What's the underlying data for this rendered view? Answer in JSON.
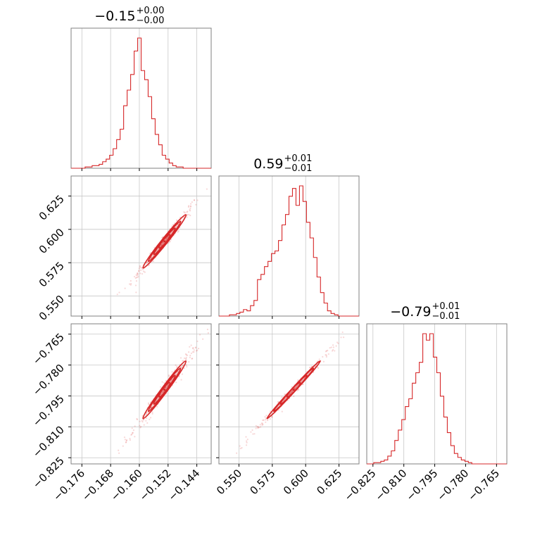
{
  "colors": {
    "series": "#d62728",
    "grid": "#c8c8c8",
    "frame": "#808080",
    "background": "#ffffff"
  },
  "chart_data": {
    "type": "corner",
    "grid": true,
    "dims": [
      {
        "index": 0,
        "title": {
          "main": "−0.15",
          "plus": "+0.00",
          "minus": "−0.00"
        },
        "range": [
          -0.179,
          -0.14
        ],
        "median": -0.153,
        "sigma": 0.003,
        "ticks": [
          -0.176,
          -0.168,
          -0.16,
          -0.152,
          -0.144
        ],
        "tick_labels": [
          "−0.176",
          "−0.168",
          "−0.160",
          "−0.152",
          "−0.144"
        ]
      },
      {
        "index": 1,
        "title": {
          "main": "0.59",
          "plus": "+0.01",
          "minus": "−0.01"
        },
        "range": [
          0.535,
          0.64
        ],
        "median": 0.591,
        "sigma": 0.01,
        "ticks": [
          0.55,
          0.575,
          0.6,
          0.625
        ],
        "tick_labels": [
          "0.550",
          "0.575",
          "0.600",
          "0.625"
        ]
      },
      {
        "index": 2,
        "title": {
          "main": "−0.79",
          "plus": "+0.01",
          "minus": "−0.01"
        },
        "range": [
          -0.828,
          -0.76
        ],
        "median": -0.792,
        "sigma": 0.007,
        "ticks": [
          -0.825,
          -0.81,
          -0.795,
          -0.78,
          -0.765
        ],
        "tick_labels": [
          "−0.825",
          "−0.810",
          "−0.795",
          "−0.780",
          "−0.765"
        ]
      }
    ],
    "histograms": [
      {
        "dim": 0,
        "bins": 40,
        "heights": [
          0,
          0,
          0,
          0,
          1,
          1,
          2,
          2,
          3,
          5,
          7,
          10,
          15,
          22,
          30,
          48,
          60,
          72,
          90,
          100,
          75,
          68,
          55,
          38,
          26,
          18,
          10,
          7,
          4,
          2,
          1,
          1,
          0,
          0,
          0,
          0,
          0,
          0,
          0,
          0
        ]
      },
      {
        "dim": 1,
        "bins": 40,
        "heights": [
          0,
          0,
          0,
          1,
          1,
          2,
          3,
          5,
          4,
          8,
          12,
          28,
          32,
          38,
          42,
          48,
          50,
          58,
          70,
          78,
          92,
          98,
          85,
          100,
          88,
          72,
          60,
          45,
          30,
          18,
          10,
          4,
          2,
          1,
          0,
          0,
          0,
          0,
          0,
          0
        ]
      },
      {
        "dim": 2,
        "bins": 40,
        "heights": [
          0,
          0,
          1,
          1,
          2,
          3,
          6,
          10,
          18,
          26,
          34,
          44,
          50,
          62,
          70,
          78,
          100,
          95,
          100,
          82,
          70,
          52,
          36,
          24,
          14,
          8,
          5,
          3,
          2,
          1,
          0,
          0,
          0,
          0,
          0,
          0,
          0,
          0,
          0,
          0
        ]
      }
    ],
    "pairs": [
      {
        "x_dim": 0,
        "y_dim": 1,
        "correlation": 0.985
      },
      {
        "x_dim": 0,
        "y_dim": 2,
        "correlation": 0.985
      },
      {
        "x_dim": 1,
        "y_dim": 2,
        "correlation": 0.995
      }
    ],
    "contour_levels_sigma": [
      0.5,
      1.0,
      1.5,
      2.0
    ]
  }
}
